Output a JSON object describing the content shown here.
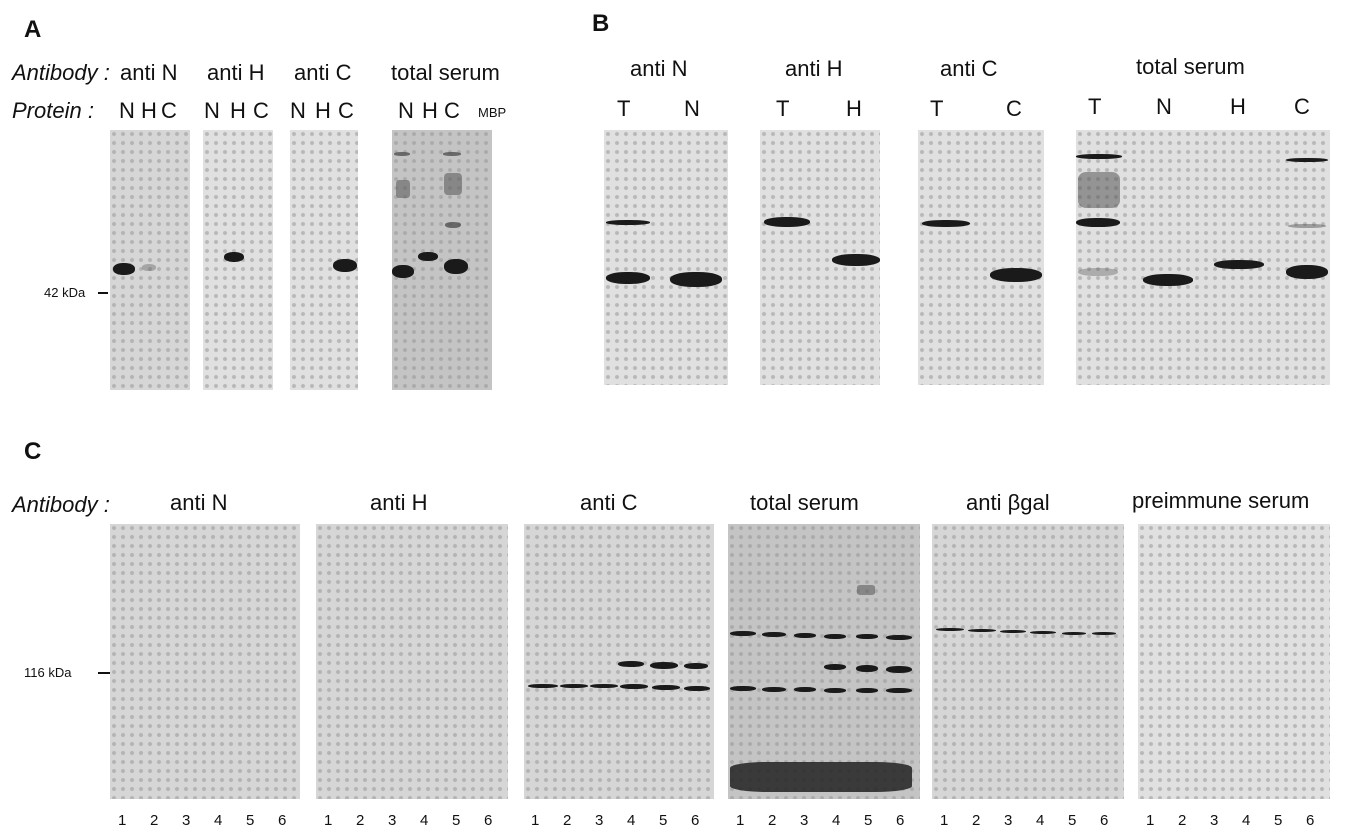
{
  "panel_a": {
    "letter": "A",
    "antibody_label": "Antibody :",
    "protein_label": "Protein :",
    "groups": [
      {
        "antibody": "anti N",
        "lanes": [
          "N",
          "H",
          "C"
        ]
      },
      {
        "antibody": "anti H",
        "lanes": [
          "N",
          "H",
          "C"
        ]
      },
      {
        "antibody": "anti C",
        "lanes": [
          "N",
          "H",
          "C"
        ]
      },
      {
        "antibody": "total serum",
        "lanes": [
          "N",
          "H",
          "C"
        ],
        "extra_lane": "MBP"
      }
    ],
    "marker": "42 kDa"
  },
  "panel_b": {
    "letter": "B",
    "groups": [
      {
        "antibody": "anti N",
        "lanes": [
          "T",
          "N"
        ]
      },
      {
        "antibody": "anti H",
        "lanes": [
          "T",
          "H"
        ]
      },
      {
        "antibody": "anti C",
        "lanes": [
          "T",
          "C"
        ]
      },
      {
        "antibody": "total serum",
        "lanes": [
          "T",
          "N",
          "H",
          "C"
        ]
      }
    ]
  },
  "panel_c": {
    "letter": "C",
    "antibody_label": "Antibody :",
    "groups": [
      {
        "antibody": "anti N"
      },
      {
        "antibody": "anti H"
      },
      {
        "antibody": "anti C"
      },
      {
        "antibody": "total serum"
      },
      {
        "antibody": "anti βgal"
      },
      {
        "antibody": "preimmune serum"
      }
    ],
    "lane_numbers": [
      "1",
      "2",
      "3",
      "4",
      "5",
      "6"
    ],
    "marker": "116 kDa"
  }
}
